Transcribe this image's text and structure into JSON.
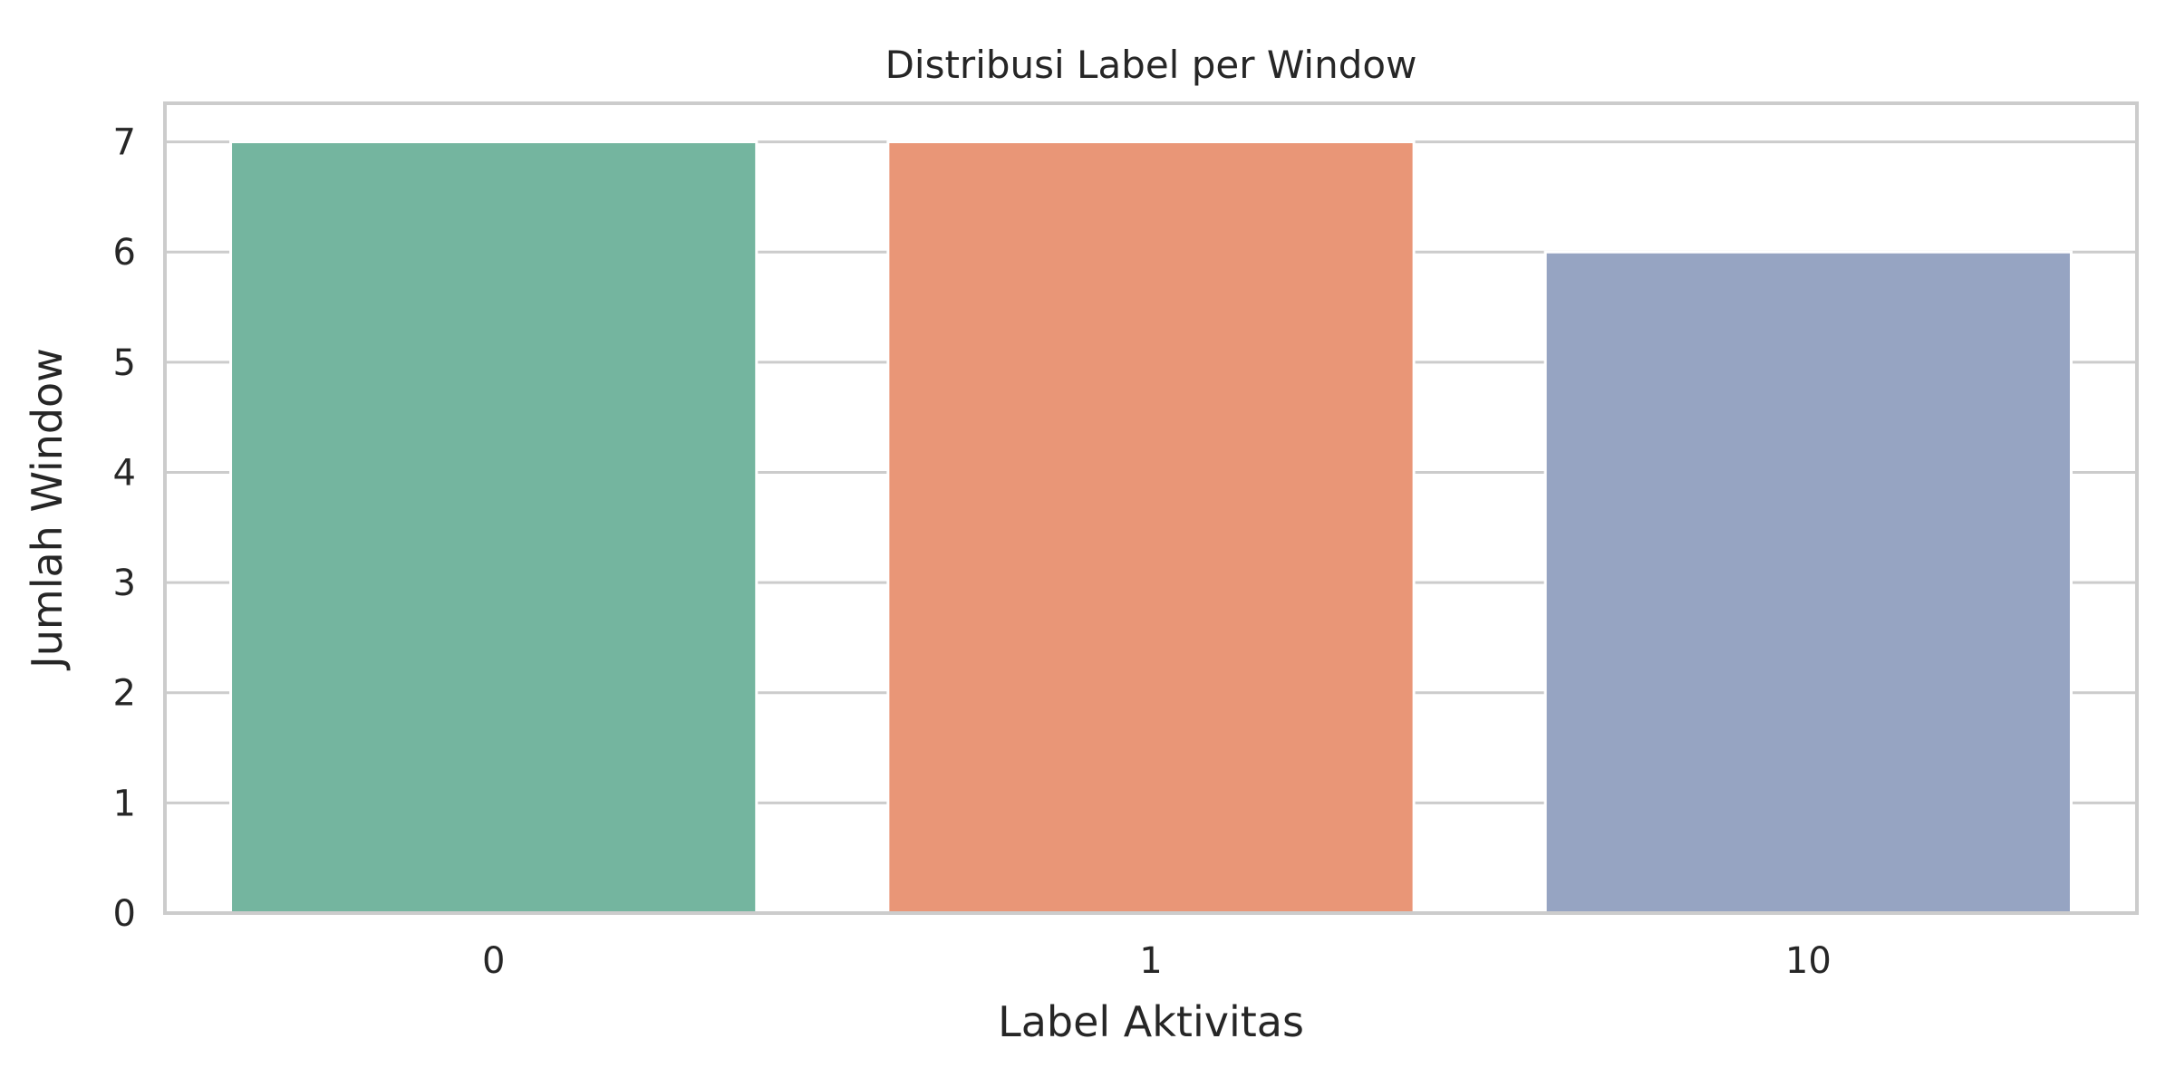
{
  "chart_data": {
    "type": "bar",
    "title": "Distribusi Label per Window",
    "xlabel": "Label Aktivitas",
    "ylabel": "Jumlah Window",
    "categories": [
      "0",
      "1",
      "10"
    ],
    "values": [
      7,
      7,
      6
    ],
    "colors": [
      "#74b59f",
      "#e99677",
      "#96a4c2"
    ],
    "ylim": [
      0,
      7.35
    ],
    "yticks": [
      0,
      1,
      2,
      3,
      4,
      5,
      6,
      7
    ],
    "grid": true,
    "legend": "none"
  }
}
